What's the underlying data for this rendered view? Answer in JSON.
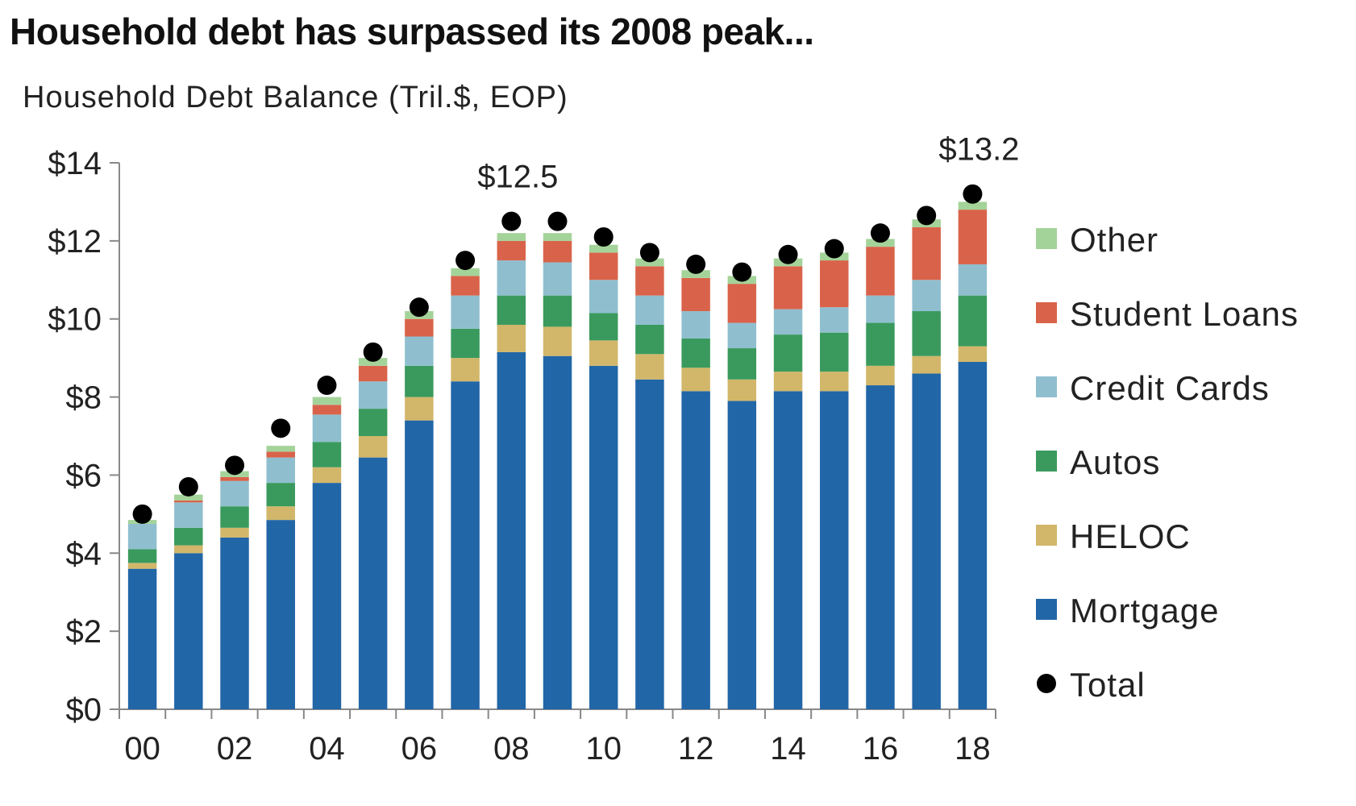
{
  "title": "Household debt has surpassed its 2008 peak...",
  "subtitle": "Household Debt Balance (Tril.$, EOP)",
  "chart_data": {
    "type": "bar",
    "stacked": true,
    "categories": [
      "00",
      "01",
      "02",
      "03",
      "04",
      "05",
      "06",
      "07",
      "08",
      "09",
      "10",
      "11",
      "12",
      "13",
      "14",
      "15",
      "16",
      "17",
      "18"
    ],
    "x_tick_labels": [
      "00",
      "02",
      "04",
      "06",
      "08",
      "10",
      "12",
      "14",
      "16",
      "18"
    ],
    "y_tick_labels": [
      "$0",
      "$2",
      "$4",
      "$6",
      "$8",
      "$10",
      "$12",
      "$14"
    ],
    "ylim": [
      0,
      14
    ],
    "grid": false,
    "legend_position": "right",
    "series": [
      {
        "name": "Mortgage",
        "color": "#2166a7",
        "values": [
          3.6,
          4.0,
          4.4,
          4.85,
          5.8,
          6.45,
          7.4,
          8.4,
          9.15,
          9.05,
          8.8,
          8.45,
          8.15,
          7.9,
          8.15,
          8.15,
          8.3,
          8.6,
          8.9
        ]
      },
      {
        "name": "HELOC",
        "color": "#d2b76a",
        "values": [
          0.15,
          0.2,
          0.25,
          0.35,
          0.4,
          0.55,
          0.6,
          0.6,
          0.7,
          0.75,
          0.65,
          0.65,
          0.6,
          0.55,
          0.5,
          0.5,
          0.5,
          0.45,
          0.4
        ]
      },
      {
        "name": "Autos",
        "color": "#3a9a5d",
        "values": [
          0.35,
          0.45,
          0.55,
          0.6,
          0.65,
          0.7,
          0.8,
          0.75,
          0.75,
          0.8,
          0.7,
          0.75,
          0.75,
          0.8,
          0.95,
          1.0,
          1.1,
          1.15,
          1.3
        ]
      },
      {
        "name": "Credit Cards",
        "color": "#8fbfcf",
        "values": [
          0.65,
          0.65,
          0.65,
          0.65,
          0.7,
          0.7,
          0.75,
          0.85,
          0.9,
          0.85,
          0.85,
          0.75,
          0.7,
          0.65,
          0.65,
          0.65,
          0.7,
          0.8,
          0.8
        ]
      },
      {
        "name": "Student Loans",
        "color": "#d9634a",
        "values": [
          0.0,
          0.05,
          0.1,
          0.15,
          0.25,
          0.4,
          0.45,
          0.5,
          0.5,
          0.55,
          0.7,
          0.75,
          0.85,
          1.0,
          1.1,
          1.2,
          1.25,
          1.35,
          1.4
        ]
      },
      {
        "name": "Other",
        "color": "#a4d39a",
        "values": [
          0.1,
          0.15,
          0.15,
          0.15,
          0.2,
          0.2,
          0.2,
          0.2,
          0.2,
          0.2,
          0.2,
          0.2,
          0.2,
          0.2,
          0.2,
          0.2,
          0.2,
          0.2,
          0.2
        ]
      }
    ],
    "total": {
      "name": "Total",
      "color": "#000000",
      "values": [
        5.0,
        5.7,
        6.25,
        7.2,
        8.3,
        9.15,
        10.3,
        11.5,
        12.5,
        12.5,
        12.1,
        11.7,
        11.4,
        11.2,
        11.65,
        11.8,
        12.2,
        12.65,
        13.2
      ]
    },
    "annotations": [
      {
        "category": "08",
        "text": "$12.5"
      },
      {
        "category": "18",
        "text": "$13.2"
      }
    ]
  }
}
